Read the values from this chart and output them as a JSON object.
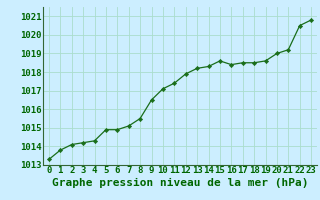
{
  "title": "Graphe pression niveau de la mer (hPa)",
  "x_values": [
    0,
    1,
    2,
    3,
    4,
    5,
    6,
    7,
    8,
    9,
    10,
    11,
    12,
    13,
    14,
    15,
    16,
    17,
    18,
    19,
    20,
    21,
    22,
    23
  ],
  "y_values": [
    1013.3,
    1013.8,
    1014.1,
    1014.2,
    1014.3,
    1014.9,
    1014.9,
    1015.1,
    1015.5,
    1016.5,
    1017.1,
    1017.4,
    1017.9,
    1018.2,
    1018.3,
    1018.6,
    1018.4,
    1018.5,
    1018.5,
    1018.6,
    1019.0,
    1019.2,
    1020.5,
    1020.8
  ],
  "ylim": [
    1013.0,
    1021.5
  ],
  "yticks": [
    1013,
    1014,
    1015,
    1016,
    1017,
    1018,
    1019,
    1020,
    1021
  ],
  "xlim": [
    -0.5,
    23.5
  ],
  "xticks": [
    0,
    1,
    2,
    3,
    4,
    5,
    6,
    7,
    8,
    9,
    10,
    11,
    12,
    13,
    14,
    15,
    16,
    17,
    18,
    19,
    20,
    21,
    22,
    23
  ],
  "line_color": "#1a6e1a",
  "marker_color": "#1a6e1a",
  "bg_color": "#cceeff",
  "grid_color": "#aaddcc",
  "title_color": "#006600",
  "tick_color": "#006600",
  "title_fontsize": 8.0,
  "tick_fontsize": 6.5
}
